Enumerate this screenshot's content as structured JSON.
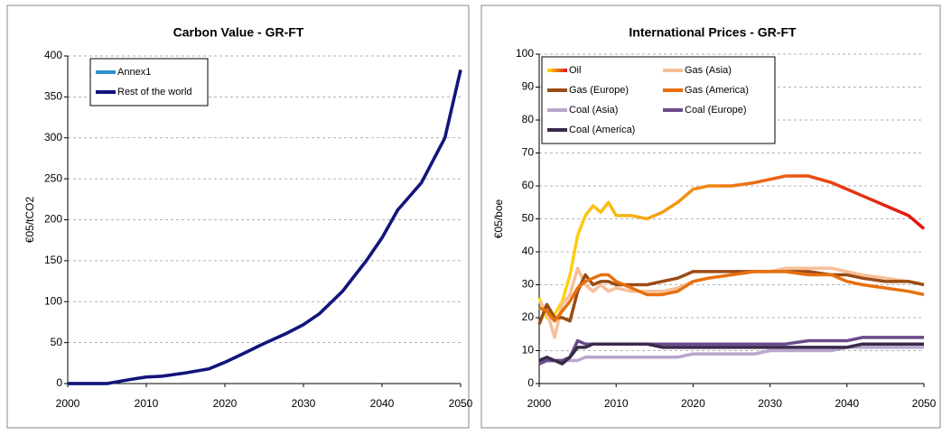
{
  "chart_data": [
    {
      "type": "line",
      "title": "Carbon Value - GR-FT",
      "y_label": "€05/tCO2",
      "x": [
        2000,
        2005,
        2008,
        2010,
        2012,
        2015,
        2018,
        2020,
        2022,
        2025,
        2028,
        2030,
        2032,
        2035,
        2038,
        2040,
        2042,
        2045,
        2048,
        2050
      ],
      "series": [
        {
          "name": "Annex1",
          "color": "#2e8fd0",
          "values": [
            0,
            0,
            5,
            8,
            9,
            13,
            18,
            26,
            35,
            49,
            62,
            72,
            85,
            113,
            150,
            178,
            212,
            245,
            300,
            383
          ]
        },
        {
          "name": "Rest of the world",
          "color": "#14147a",
          "values": [
            0,
            0,
            5,
            8,
            9,
            13,
            18,
            26,
            35,
            49,
            62,
            72,
            85,
            113,
            150,
            178,
            212,
            245,
            300,
            383
          ]
        }
      ],
      "xlim": [
        2000,
        2050
      ],
      "xticks": [
        2000,
        2010,
        2020,
        2030,
        2040,
        2050
      ],
      "ylim": [
        0,
        400
      ],
      "yticks": [
        0,
        50,
        100,
        150,
        200,
        250,
        300,
        350,
        400
      ],
      "grid": true
    },
    {
      "type": "line",
      "title": "International Prices - GR-FT",
      "y_label": "€05/boe",
      "x": [
        2000,
        2001,
        2002,
        2003,
        2004,
        2005,
        2006,
        2007,
        2008,
        2009,
        2010,
        2012,
        2014,
        2016,
        2018,
        2020,
        2022,
        2025,
        2028,
        2030,
        2032,
        2035,
        2038,
        2040,
        2042,
        2045,
        2048,
        2050
      ],
      "series": [
        {
          "name": "Oil",
          "gradient": [
            "#ffe010",
            "#e01010"
          ],
          "values": [
            26,
            20,
            21,
            25,
            33,
            45,
            51,
            54,
            52,
            55,
            51,
            51,
            50,
            52,
            55,
            59,
            60,
            60,
            61,
            62,
            63,
            63,
            61,
            59,
            57,
            54,
            51,
            47
          ]
        },
        {
          "name": "Gas (Asia)",
          "color": "#f7bf98",
          "values": [
            25,
            22,
            14,
            24,
            27,
            35,
            30,
            28,
            30,
            28,
            29,
            28,
            28,
            28,
            29,
            31,
            32,
            33,
            34,
            34,
            35,
            35,
            35,
            34,
            33,
            32,
            31,
            30
          ]
        },
        {
          "name": "Gas (Europe)",
          "color": "#9a4b14",
          "values": [
            18,
            24,
            20,
            20,
            19,
            28,
            33,
            30,
            31,
            31,
            30,
            30,
            30,
            31,
            32,
            34,
            34,
            34,
            34,
            34,
            34,
            34,
            33,
            33,
            32,
            31,
            31,
            30
          ]
        },
        {
          "name": "Gas (America)",
          "color": "#e8700e",
          "values": [
            23,
            22,
            19,
            22,
            25,
            29,
            31,
            32,
            33,
            33,
            31,
            29,
            27,
            27,
            28,
            31,
            32,
            33,
            34,
            34,
            34,
            33,
            33,
            31,
            30,
            29,
            28,
            27
          ]
        },
        {
          "name": "Coal (Asia)",
          "color": "#b8a6cc",
          "values": [
            6,
            7,
            7,
            7,
            7,
            7,
            8,
            8,
            8,
            8,
            8,
            8,
            8,
            8,
            8,
            9,
            9,
            9,
            9,
            10,
            10,
            10,
            10,
            11,
            11,
            11,
            11,
            11
          ]
        },
        {
          "name": "Coal (Europe)",
          "color": "#6a4a8a",
          "values": [
            6,
            7,
            7,
            7,
            8,
            13,
            12,
            12,
            12,
            12,
            12,
            12,
            12,
            12,
            12,
            12,
            12,
            12,
            12,
            12,
            12,
            13,
            13,
            13,
            14,
            14,
            14,
            14
          ]
        },
        {
          "name": "Coal (America)",
          "color": "#3a2a4a",
          "values": [
            7,
            8,
            7,
            6,
            8,
            11,
            11,
            12,
            12,
            12,
            12,
            12,
            12,
            11,
            11,
            11,
            11,
            11,
            11,
            11,
            11,
            11,
            11,
            11,
            12,
            12,
            12,
            12
          ]
        }
      ],
      "xlim": [
        2000,
        2050
      ],
      "xticks": [
        2000,
        2010,
        2020,
        2030,
        2040,
        2050
      ],
      "ylim": [
        0,
        100
      ],
      "yticks": [
        0,
        10,
        20,
        30,
        40,
        50,
        60,
        70,
        80,
        90,
        100
      ],
      "grid": true
    }
  ]
}
